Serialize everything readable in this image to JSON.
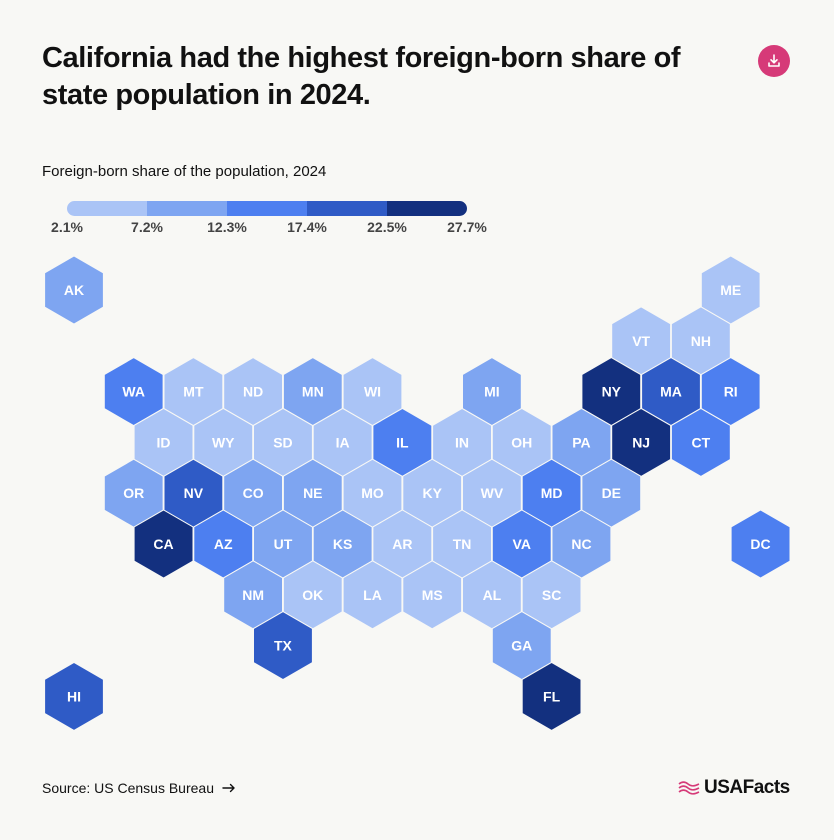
{
  "title": "California had the highest foreign-born share of state population in 2024.",
  "legend": {
    "title": "Foreign-born share of the population, 2024",
    "ticks": [
      "2.1%",
      "7.2%",
      "12.3%",
      "17.4%",
      "22.5%",
      "27.7%"
    ],
    "colors": [
      "#aac4f6",
      "#7ea5f1",
      "#4d7ff0",
      "#2f5bc6",
      "#13307f"
    ]
  },
  "map_data": [
    {
      "abbr": "AK",
      "col": 0,
      "row": 0,
      "bin": 1
    },
    {
      "abbr": "ME",
      "col": 11,
      "row": 0,
      "bin": 0
    },
    {
      "abbr": "VT",
      "col": 9.5,
      "row": 1,
      "bin": 0
    },
    {
      "abbr": "NH",
      "col": 10.5,
      "row": 1,
      "bin": 0
    },
    {
      "abbr": "WA",
      "col": 1,
      "row": 2,
      "bin": 2
    },
    {
      "abbr": "MT",
      "col": 2,
      "row": 2,
      "bin": 0
    },
    {
      "abbr": "ND",
      "col": 3,
      "row": 2,
      "bin": 0
    },
    {
      "abbr": "MN",
      "col": 4,
      "row": 2,
      "bin": 1
    },
    {
      "abbr": "WI",
      "col": 5,
      "row": 2,
      "bin": 0
    },
    {
      "abbr": "MI",
      "col": 7,
      "row": 2,
      "bin": 1
    },
    {
      "abbr": "NY",
      "col": 9,
      "row": 2,
      "bin": 4
    },
    {
      "abbr": "MA",
      "col": 10,
      "row": 2,
      "bin": 3
    },
    {
      "abbr": "RI",
      "col": 11,
      "row": 2,
      "bin": 2
    },
    {
      "abbr": "ID",
      "col": 1.5,
      "row": 3,
      "bin": 0
    },
    {
      "abbr": "WY",
      "col": 2.5,
      "row": 3,
      "bin": 0
    },
    {
      "abbr": "SD",
      "col": 3.5,
      "row": 3,
      "bin": 0
    },
    {
      "abbr": "IA",
      "col": 4.5,
      "row": 3,
      "bin": 0
    },
    {
      "abbr": "IL",
      "col": 5.5,
      "row": 3,
      "bin": 2
    },
    {
      "abbr": "IN",
      "col": 6.5,
      "row": 3,
      "bin": 0
    },
    {
      "abbr": "OH",
      "col": 7.5,
      "row": 3,
      "bin": 0
    },
    {
      "abbr": "PA",
      "col": 8.5,
      "row": 3,
      "bin": 1
    },
    {
      "abbr": "NJ",
      "col": 9.5,
      "row": 3,
      "bin": 4
    },
    {
      "abbr": "CT",
      "col": 10.5,
      "row": 3,
      "bin": 2
    },
    {
      "abbr": "OR",
      "col": 1,
      "row": 4,
      "bin": 1
    },
    {
      "abbr": "NV",
      "col": 2,
      "row": 4,
      "bin": 3
    },
    {
      "abbr": "CO",
      "col": 3,
      "row": 4,
      "bin": 1
    },
    {
      "abbr": "NE",
      "col": 4,
      "row": 4,
      "bin": 1
    },
    {
      "abbr": "MO",
      "col": 5,
      "row": 4,
      "bin": 0
    },
    {
      "abbr": "KY",
      "col": 6,
      "row": 4,
      "bin": 0
    },
    {
      "abbr": "WV",
      "col": 7,
      "row": 4,
      "bin": 0
    },
    {
      "abbr": "MD",
      "col": 8,
      "row": 4,
      "bin": 2
    },
    {
      "abbr": "DE",
      "col": 9,
      "row": 4,
      "bin": 1
    },
    {
      "abbr": "CA",
      "col": 1.5,
      "row": 5,
      "bin": 4
    },
    {
      "abbr": "AZ",
      "col": 2.5,
      "row": 5,
      "bin": 2
    },
    {
      "abbr": "UT",
      "col": 3.5,
      "row": 5,
      "bin": 1
    },
    {
      "abbr": "KS",
      "col": 4.5,
      "row": 5,
      "bin": 1
    },
    {
      "abbr": "AR",
      "col": 5.5,
      "row": 5,
      "bin": 0
    },
    {
      "abbr": "TN",
      "col": 6.5,
      "row": 5,
      "bin": 0
    },
    {
      "abbr": "VA",
      "col": 7.5,
      "row": 5,
      "bin": 2
    },
    {
      "abbr": "NC",
      "col": 8.5,
      "row": 5,
      "bin": 1
    },
    {
      "abbr": "DC",
      "col": 11.5,
      "row": 5,
      "bin": 2
    },
    {
      "abbr": "NM",
      "col": 3,
      "row": 6,
      "bin": 1
    },
    {
      "abbr": "OK",
      "col": 4,
      "row": 6,
      "bin": 0
    },
    {
      "abbr": "LA",
      "col": 5,
      "row": 6,
      "bin": 0
    },
    {
      "abbr": "MS",
      "col": 6,
      "row": 6,
      "bin": 0
    },
    {
      "abbr": "AL",
      "col": 7,
      "row": 6,
      "bin": 0
    },
    {
      "abbr": "SC",
      "col": 8,
      "row": 6,
      "bin": 0
    },
    {
      "abbr": "TX",
      "col": 3.5,
      "row": 7,
      "bin": 3
    },
    {
      "abbr": "GA",
      "col": 7.5,
      "row": 7,
      "bin": 1
    },
    {
      "abbr": "HI",
      "col": 0,
      "row": 8,
      "bin": 3
    },
    {
      "abbr": "FL",
      "col": 8,
      "row": 8,
      "bin": 4
    }
  ],
  "footer": {
    "source": "Source: US Census Bureau",
    "brand": "USAFacts"
  },
  "icons": {
    "download": "download-icon",
    "source_arrow": "arrow-right-icon",
    "brand_logo": "usafacts-flag-icon"
  }
}
